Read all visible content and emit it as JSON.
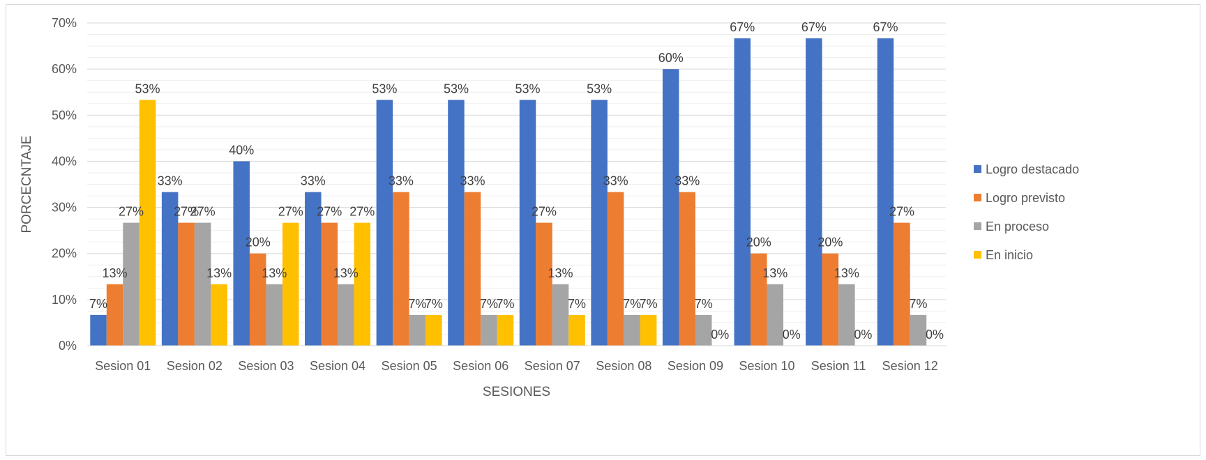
{
  "chart_data": {
    "type": "bar",
    "title": "",
    "xlabel": "SESIONES",
    "ylabel": "PORCECNTAJE",
    "ylim": [
      0,
      70
    ],
    "grid": true,
    "legend_position": "right",
    "y_ticks": [
      "0%",
      "10%",
      "20%",
      "30%",
      "40%",
      "50%",
      "60%",
      "70%"
    ],
    "categories": [
      "Sesion 01",
      "Sesion 02",
      "Sesion 03",
      "Sesion 04",
      "Sesion 05",
      "Sesion 06",
      "Sesion 07",
      "Sesion 08",
      "Sesion 09",
      "Sesion 10",
      "Sesion 11",
      "Sesion 12"
    ],
    "series": [
      {
        "name": "Logro destacado",
        "color": "#4472C4",
        "values": [
          6.67,
          33.33,
          40,
          33.33,
          53.33,
          53.33,
          53.33,
          53.33,
          60,
          66.67,
          66.67,
          66.67
        ],
        "labels": [
          "7%",
          "33%",
          "40%",
          "33%",
          "53%",
          "53%",
          "53%",
          "53%",
          "60%",
          "67%",
          "67%",
          "67%"
        ]
      },
      {
        "name": "Logro previsto",
        "color": "#ED7D31",
        "values": [
          13.33,
          26.67,
          20,
          26.67,
          33.33,
          33.33,
          26.67,
          33.33,
          33.33,
          20,
          20,
          26.67
        ],
        "labels": [
          "13%",
          "27%",
          "20%",
          "27%",
          "33%",
          "33%",
          "27%",
          "33%",
          "33%",
          "20%",
          "20%",
          "27%"
        ]
      },
      {
        "name": "En proceso",
        "color": "#A5A5A5",
        "values": [
          26.67,
          26.67,
          13.33,
          13.33,
          6.67,
          6.67,
          13.33,
          6.67,
          6.67,
          13.33,
          13.33,
          6.67
        ],
        "labels": [
          "27%",
          "27%",
          "13%",
          "13%",
          "7%",
          "7%",
          "13%",
          "7%",
          "7%",
          "13%",
          "13%",
          "7%"
        ]
      },
      {
        "name": "En inicio",
        "color": "#FFC000",
        "values": [
          53.33,
          13.33,
          26.67,
          26.67,
          6.67,
          6.67,
          6.67,
          6.67,
          0,
          0,
          0,
          0
        ],
        "labels": [
          "53%",
          "13%",
          "27%",
          "27%",
          "7%",
          "7%",
          "7%",
          "7%",
          "0%",
          "0%",
          "0%",
          "0%"
        ]
      }
    ]
  }
}
